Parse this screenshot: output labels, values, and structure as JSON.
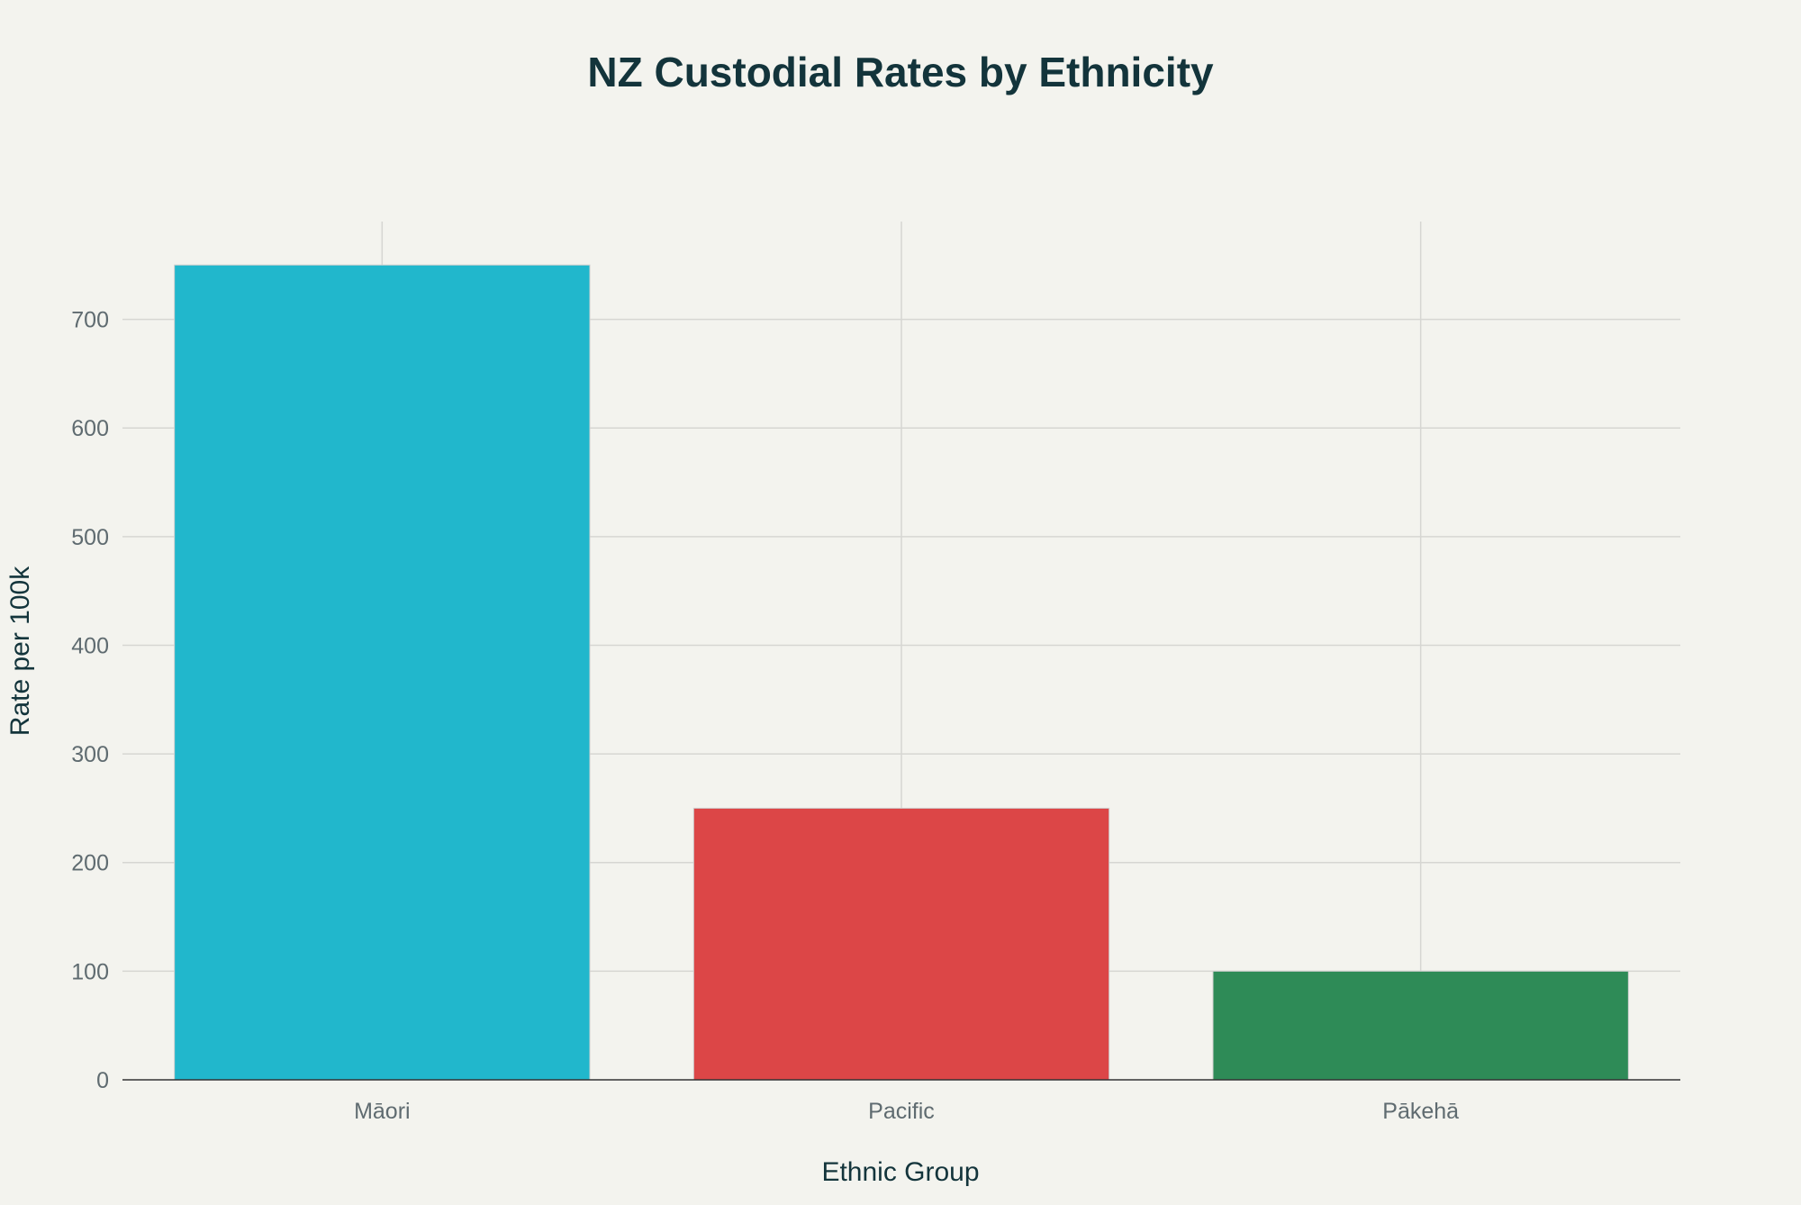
{
  "chart_data": {
    "type": "bar",
    "title": "NZ Custodial Rates by Ethnicity",
    "xlabel": "Ethnic Group",
    "ylabel": "Rate per 100k",
    "categories": [
      "Māori",
      "Pacific",
      "Pākehā"
    ],
    "values": [
      750,
      250,
      100
    ],
    "colors": [
      "#21b7cc",
      "#dc4647",
      "#2e8b57"
    ],
    "ylim": [
      0,
      790
    ],
    "yticks": [
      0,
      100,
      200,
      300,
      400,
      500,
      600,
      700
    ],
    "grid": true,
    "legend": "none"
  }
}
